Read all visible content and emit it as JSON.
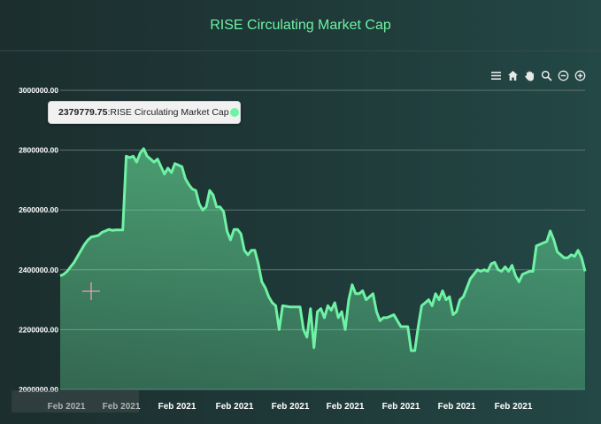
{
  "title": "RISE Circulating Market Cap",
  "toolbar": [
    {
      "name": "menu-icon"
    },
    {
      "name": "home-icon"
    },
    {
      "name": "pan-icon"
    },
    {
      "name": "zoom-in-icon"
    },
    {
      "name": "zoom-minus-icon"
    },
    {
      "name": "zoom-plus-icon"
    }
  ],
  "tooltip": {
    "value": "2379779.75",
    "series": " :RISE Circulating Market Cap"
  },
  "colors": {
    "accent": "#6ef2a4",
    "background": "#1f3a39"
  },
  "chart_data": {
    "type": "area",
    "title": "RISE Circulating Market Cap",
    "xlabel": "",
    "ylabel": "",
    "ylim": [
      2000000,
      3000000
    ],
    "yticks": [
      "3000000.00",
      "2800000.00",
      "2600000.00",
      "2400000.00",
      "2200000.00",
      "2000000.00"
    ],
    "xticks": [
      "Feb 2021",
      "Feb 2021",
      "Feb 2021",
      "Feb 2021",
      "Feb 2021",
      "Feb 2021",
      "Feb 2021",
      "Feb 2021",
      "Feb 2021"
    ],
    "grid": true,
    "series": [
      {
        "name": "RISE Circulating Market Cap",
        "values": [
          2380000,
          2385000,
          2395000,
          2410000,
          2425000,
          2445000,
          2465000,
          2485000,
          2500000,
          2510000,
          2512000,
          2515000,
          2525000,
          2530000,
          2535000,
          2532000,
          2533000,
          2533000,
          2533000,
          2780000,
          2775000,
          2780000,
          2760000,
          2790000,
          2805000,
          2780000,
          2770000,
          2760000,
          2770000,
          2745000,
          2720000,
          2740000,
          2725000,
          2755000,
          2750000,
          2745000,
          2705000,
          2685000,
          2670000,
          2665000,
          2620000,
          2600000,
          2610000,
          2665000,
          2650000,
          2610000,
          2610000,
          2595000,
          2530000,
          2500000,
          2535000,
          2535000,
          2520000,
          2465000,
          2450000,
          2465000,
          2465000,
          2420000,
          2360000,
          2340000,
          2310000,
          2290000,
          2280000,
          2200000,
          2280000,
          2278000,
          2276000,
          2276000,
          2276000,
          2276000,
          2200000,
          2175000,
          2270000,
          2140000,
          2260000,
          2270000,
          2240000,
          2280000,
          2265000,
          2290000,
          2240000,
          2260000,
          2200000,
          2300000,
          2350000,
          2320000,
          2320000,
          2330000,
          2300000,
          2310000,
          2320000,
          2260000,
          2230000,
          2240000,
          2240000,
          2245000,
          2250000,
          2230000,
          2210000,
          2210000,
          2210000,
          2130000,
          2130000,
          2210000,
          2280000,
          2290000,
          2300000,
          2280000,
          2320000,
          2300000,
          2330000,
          2300000,
          2310000,
          2250000,
          2260000,
          2300000,
          2310000,
          2340000,
          2370000,
          2385000,
          2400000,
          2395000,
          2400000,
          2395000,
          2420000,
          2425000,
          2400000,
          2395000,
          2410000,
          2395000,
          2415000,
          2380000,
          2360000,
          2385000,
          2390000,
          2395000,
          2395000,
          2480000,
          2485000,
          2490000,
          2495000,
          2530000,
          2500000,
          2460000,
          2450000,
          2440000,
          2440000,
          2450000,
          2445000,
          2465000,
          2440000,
          2395000
        ]
      }
    ]
  }
}
